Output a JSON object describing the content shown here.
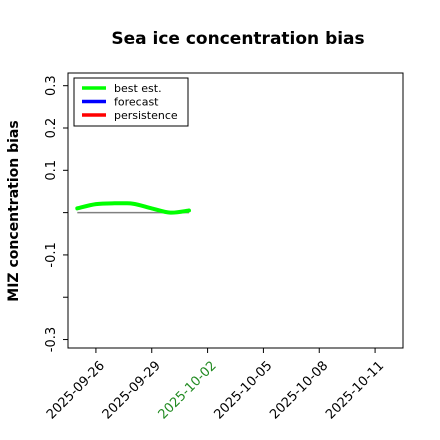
{
  "chart_data": {
    "type": "line",
    "title": "Sea ice concentration bias",
    "xlabel": "",
    "ylabel": "MIZ concentration bias",
    "x_ticks": [
      "2025-09-26",
      "2025-09-29",
      "2025-10-02",
      "2025-10-05",
      "2025-10-08",
      "2025-10-11"
    ],
    "x_tick_colors": [
      "#000000",
      "#000000",
      "#228B22",
      "#000000",
      "#000000",
      "#000000"
    ],
    "xlim": [
      "2025-09-24T12:00",
      "2025-10-12T12:00"
    ],
    "y_ticks": [
      -0.3,
      -0.2,
      -0.1,
      0.0,
      0.1,
      0.2,
      0.3
    ],
    "y_tick_labels": [
      "-0.3",
      "",
      "-0.1",
      "",
      "0.1",
      "0.2",
      "0.3"
    ],
    "ylim": [
      -0.32,
      0.33
    ],
    "grid": false,
    "legend_position": "top-left",
    "series": [
      {
        "name": "best est.",
        "color": "#00ff00",
        "x": [
          "2025-09-25",
          "2025-09-26",
          "2025-09-27",
          "2025-09-28",
          "2025-09-29",
          "2025-09-30",
          "2025-10-01"
        ],
        "values": [
          0.01,
          0.02,
          0.022,
          0.021,
          0.01,
          0.0,
          0.005
        ]
      },
      {
        "name": "forecast",
        "color": "#0000ff",
        "x": [],
        "values": []
      },
      {
        "name": "persistence",
        "color": "#ff0000",
        "x": [],
        "values": []
      }
    ],
    "reference_line": {
      "color": "#808080",
      "x": [
        "2025-09-25",
        "2025-10-01"
      ],
      "y": 0.0
    }
  }
}
